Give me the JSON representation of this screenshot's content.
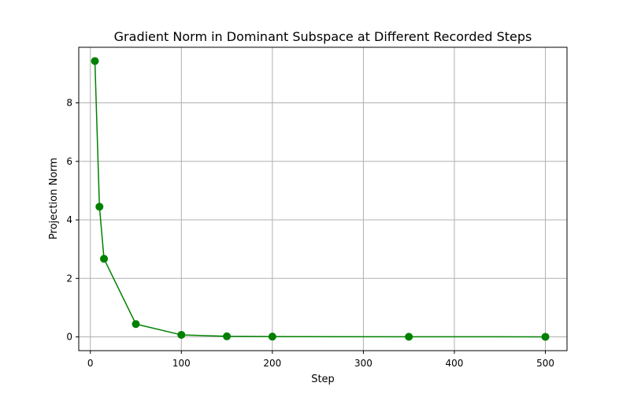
{
  "chart_data": {
    "type": "line",
    "title": "Gradient Norm in Dominant Subspace at Different Recorded Steps",
    "xlabel": "Step",
    "ylabel": "Projection Norm",
    "xlim": [
      -12.75,
      523.75
    ],
    "ylim": [
      -0.47,
      9.9
    ],
    "xticks": [
      0,
      100,
      200,
      300,
      400,
      500
    ],
    "yticks": [
      0,
      2,
      4,
      6,
      8
    ],
    "grid": true,
    "legend": "none",
    "series": [
      {
        "color": "#008000",
        "marker": "circle",
        "x": [
          5,
          10,
          15,
          50,
          100,
          150,
          200,
          350,
          500
        ],
        "y": [
          9.43,
          4.45,
          2.67,
          0.44,
          0.07,
          0.02,
          0.01,
          0.005,
          0.003
        ]
      }
    ]
  }
}
